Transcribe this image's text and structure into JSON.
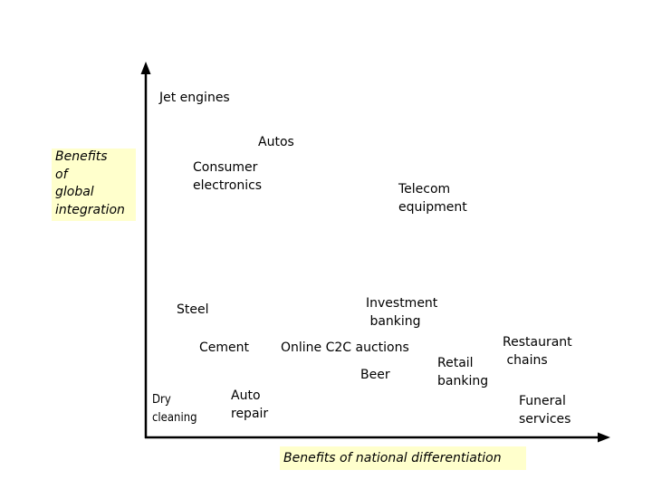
{
  "axes": {
    "y_label": "Benefits\nof\nglobal\nintegration",
    "x_label": "Benefits of national differentiation"
  },
  "items": [
    {
      "id": "jet-engines",
      "text": "Jet engines"
    },
    {
      "id": "autos",
      "text": "Autos"
    },
    {
      "id": "consumer-electronics",
      "text": "Consumer\nelectronics"
    },
    {
      "id": "telecom-equipment",
      "text": "Telecom\nequipment"
    },
    {
      "id": "steel",
      "text": "Steel"
    },
    {
      "id": "investment-banking",
      "text": "Investment\n banking"
    },
    {
      "id": "cement",
      "text": "Cement"
    },
    {
      "id": "online-c2c-auctions",
      "text": "Online C2C auctions"
    },
    {
      "id": "restaurant-chains",
      "text": "Restaurant\n chains"
    },
    {
      "id": "beer",
      "text": "Beer"
    },
    {
      "id": "retail-banking",
      "text": "Retail\nbanking"
    },
    {
      "id": "dry-cleaning",
      "text": "Dry\ncleaning"
    },
    {
      "id": "auto-repair",
      "text": "Auto\nrepair"
    },
    {
      "id": "funeral-services",
      "text": "Funeral\nservices"
    }
  ]
}
